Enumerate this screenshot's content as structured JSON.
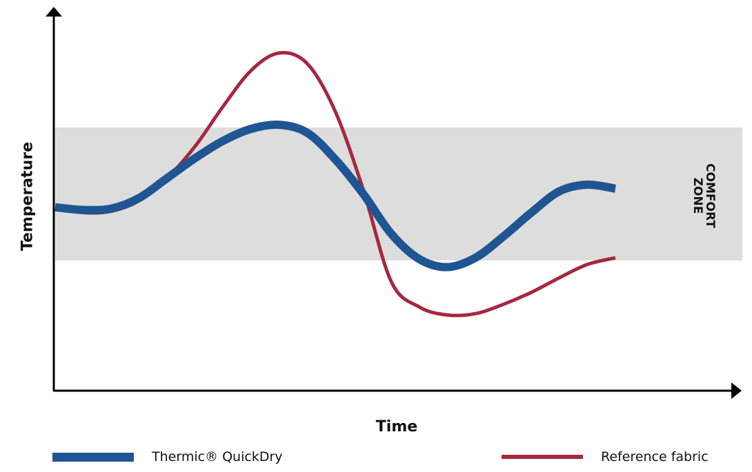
{
  "chart_data": {
    "type": "line",
    "xlabel": "Time",
    "ylabel": "Temperature",
    "band_label": [
      "COMFORT",
      "ZONE"
    ],
    "comfort_zone": [
      0.0,
      1.0
    ],
    "series": [
      {
        "name": "Thermic® QuickDry",
        "color": "#1f5592",
        "x": [
          0.0,
          0.05,
          0.1,
          0.15,
          0.2,
          0.25,
          0.3,
          0.35,
          0.4,
          0.45,
          0.5,
          0.55,
          0.6,
          0.65,
          0.7,
          0.75,
          0.8,
          0.85,
          0.9,
          0.95,
          1.0
        ],
        "y": [
          0.4,
          0.38,
          0.39,
          0.47,
          0.62,
          0.77,
          0.9,
          0.99,
          1.02,
          0.96,
          0.76,
          0.5,
          0.2,
          0.01,
          -0.05,
          0.02,
          0.18,
          0.36,
          0.52,
          0.57,
          0.54
        ]
      },
      {
        "name": "Reference fabric",
        "color": "#a6283f",
        "x": [
          0.0,
          0.05,
          0.1,
          0.15,
          0.2,
          0.25,
          0.3,
          0.35,
          0.4,
          0.45,
          0.5,
          0.55,
          0.6,
          0.65,
          0.7,
          0.75,
          0.8,
          0.85,
          0.9,
          0.95,
          1.0
        ],
        "y": [
          0.4,
          0.36,
          0.37,
          0.45,
          0.62,
          0.86,
          1.16,
          1.43,
          1.56,
          1.48,
          1.12,
          0.53,
          -0.16,
          -0.35,
          -0.41,
          -0.4,
          -0.33,
          -0.24,
          -0.13,
          -0.03,
          0.02
        ]
      }
    ]
  },
  "legend": [
    {
      "label": "Thermic® QuickDry",
      "color": "#1f5592"
    },
    {
      "label": "Reference fabric",
      "color": "#a6283f"
    }
  ]
}
